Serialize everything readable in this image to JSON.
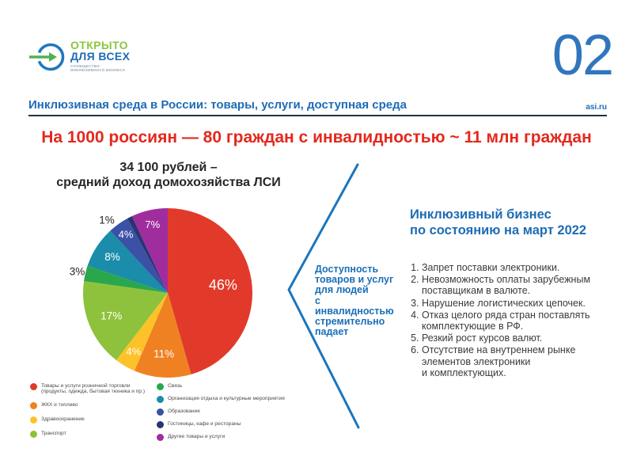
{
  "page": {
    "number": "02",
    "site_link": "asi.ru"
  },
  "logo": {
    "line1": "ОТКРЫТО",
    "line2": "ДЛЯ ВСЕХ",
    "subtitle": "СООБЩЕСТВО\nИНКЛЮЗИВНОГО БИЗНЕСА"
  },
  "header": {
    "title": "Инклюзивная среда в России: товары, услуги, доступная среда"
  },
  "main_title": "На 1000 россиян — 80 граждан с инвалидностью ~ 11 млн граждан",
  "callout": "Доступность\nтоваров и услуг\nдля людей\nс инвалидностью\nстремительно\nпадает",
  "right_panel": {
    "heading": "Инклюзивный бизнес\nпо состоянию на март 2022",
    "items": [
      "Запрет поставки электроники.",
      "Невозможность оплаты зарубежным\nпоставщикам в валюте.",
      "Нарушение логистических цепочек.",
      "Отказ целого ряда стран поставлять\nкомплектующие в РФ.",
      "Резкий рост курсов валют.",
      "Отсутствие на внутреннем рынке\nэлементов электроники\nи комплектующих."
    ]
  },
  "chart_data": {
    "type": "pie",
    "title": "34 100 рублей –\nсредний доход домохозяйства ЛСИ",
    "unit": "%",
    "legend_position": "bottom",
    "legend_split": 4,
    "start_angle_deg": 0,
    "slices": [
      {
        "name": "Товары и услуги розничной торговли\n(продукты, одежда, бытовая техника и пр.)",
        "value": 46,
        "label": "46%",
        "color": "#e13a2b",
        "inside": true,
        "label_r": 0.66,
        "label_size": 18
      },
      {
        "name": "ЖКХ и топливо",
        "value": 11,
        "label": "11%",
        "color": "#f08122",
        "inside": true,
        "label_r": 0.72,
        "label_size": 13.5
      },
      {
        "name": "Здравоохранение",
        "value": 4,
        "label": "4%",
        "color": "#fcc228",
        "inside": true,
        "label_r": 0.8,
        "label_size": 13
      },
      {
        "name": "Транспорт",
        "value": 17,
        "label": "17%",
        "color": "#8fc23c",
        "inside": true,
        "label_r": 0.72,
        "label_size": 13.5
      },
      {
        "name": "Связь",
        "value": 3,
        "label": "3%",
        "color": "#2aa74c",
        "inside": false,
        "label_r": 1.1,
        "label_size": 13.5
      },
      {
        "name": "Организация отдыха и культурные мероприятия",
        "value": 8,
        "label": "8%",
        "color": "#1b8caa",
        "inside": true,
        "label_r": 0.78,
        "label_size": 13.5
      },
      {
        "name": "Образование",
        "value": 4,
        "label": "4%",
        "color": "#3a51a5",
        "inside": true,
        "label_r": 0.85,
        "label_size": 13
      },
      {
        "name": "Гостиницы, кафе и рестораны",
        "value": 1,
        "label": "1%",
        "color": "#2b3472",
        "inside": false,
        "label_r": 1.12,
        "label_size": 13.5,
        "label_angle": 320
      },
      {
        "name": "Другие товары и услуги",
        "value": 7,
        "label": "7%",
        "color": "#a02d9e",
        "inside": true,
        "label_r": 0.83,
        "label_size": 13
      }
    ]
  }
}
